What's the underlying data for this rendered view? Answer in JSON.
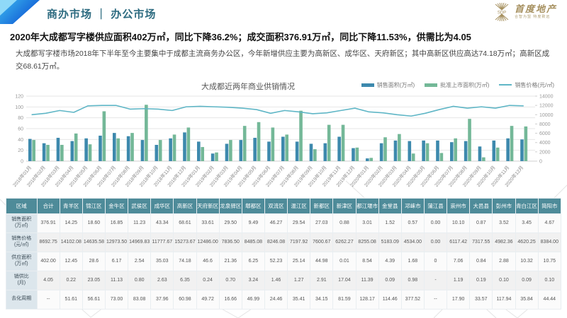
{
  "header": {
    "title": "商办市场 ｜ 办公市场",
    "logo": {
      "abbr": "SDP",
      "name": "首度地产",
      "tagline": "合智为盟  特度致远"
    }
  },
  "headline": {
    "text": "2020年大成都写字楼供应面积402万㎡，同比下降36.2%；成交面积376.91万㎡，同比下降11.53%，供需比为4.05"
  },
  "paragraph": {
    "text": "大成都写字楼市场2018年下半年至今主要集中于成都主流商务办公区，今年新增供应主要为高新区、成华区、天府新区；其中高新区供应高达74.18万㎡；高新区成交68.61万㎡。"
  },
  "chart_data": {
    "type": "bar",
    "title": "大成都近两年商业供销情况",
    "grid": true,
    "legend_position": "top-right",
    "left_axis": {
      "min": 0,
      "max": 120,
      "step": 20
    },
    "right_axis": {
      "min": 0,
      "max": 14000,
      "step": 2000
    },
    "categories": [
      "2018年01月",
      "2018年02月",
      "2018年03月",
      "2018年04月",
      "2018年05月",
      "2018年06月",
      "2018年07月",
      "2018年08月",
      "2018年09月",
      "2018年10月",
      "2018年11月",
      "2018年12月",
      "2019年01月",
      "2019年02月",
      "2019年03月",
      "2019年04月",
      "2019年05月",
      "2019年06月",
      "2019年07月",
      "2019年08月",
      "2019年09月",
      "2019年10月",
      "2019年11月",
      "2019年12月",
      "2020年01月",
      "2020年02月",
      "2020年03月",
      "2020年04月",
      "2020年05月",
      "2020年06月",
      "2020年07月",
      "2020年08月",
      "2020年09月",
      "2020年10月",
      "2020年11月",
      "2020年12月"
    ],
    "series": [
      {
        "name": "销售面积(万㎡)",
        "kind": "bar",
        "axis": "left",
        "color": "#3d89ad",
        "values": [
          41,
          33,
          43,
          37,
          42,
          47,
          52,
          46,
          39,
          30,
          42,
          53,
          36,
          14,
          32,
          39,
          43,
          36,
          45,
          36,
          32,
          33,
          45,
          24,
          5,
          33,
          38,
          37,
          38,
          38,
          35,
          37,
          27,
          38,
          42,
          40
        ]
      },
      {
        "name": "批准上市面积(万㎡)",
        "kind": "bar",
        "axis": "left",
        "color": "#74b898",
        "values": [
          39,
          30,
          30,
          51,
          31,
          92,
          42,
          52,
          104,
          39,
          49,
          62,
          26,
          16,
          39,
          65,
          72,
          62,
          49,
          93,
          22,
          67,
          67,
          25,
          6,
          44,
          50,
          14,
          33,
          15,
          42,
          78,
          7,
          25,
          65,
          64
        ]
      },
      {
        "name": "销售价格(元/㎡)",
        "kind": "line",
        "axis": "right",
        "color": "#5fb6c6",
        "values": [
          10000,
          10300,
          10900,
          10500,
          11900,
          12000,
          12000,
          11200,
          11300,
          11200,
          10900,
          11700,
          11800,
          11700,
          11600,
          11400,
          11100,
          10300,
          10900,
          10600,
          10200,
          10400,
          10900,
          11400,
          10600,
          10400,
          10000,
          9700,
          10300,
          11100,
          11800,
          11400,
          11700,
          11400,
          12000,
          11900
        ]
      }
    ]
  },
  "table": {
    "columns": [
      "区域",
      "合计",
      "青羊区",
      "锦江区",
      "金牛区",
      "武侯区",
      "成华区",
      "高新区",
      "天府新区",
      "龙泉驿区",
      "郫都区",
      "双流区",
      "温江区",
      "新都区",
      "新津区",
      "都江堰市",
      "金堂县",
      "邛崃市",
      "蒲江县",
      "崇州市",
      "大邑县",
      "彭州市",
      "青白江区",
      "简阳市"
    ],
    "rows": [
      {
        "label": "销售面积",
        "unit": "(万㎡)",
        "values": [
          "376.91",
          "14.25",
          "18.60",
          "16.85",
          "11.23",
          "43.34",
          "68.61",
          "33.61",
          "29.50",
          "9.49",
          "46.27",
          "29.54",
          "27.03",
          "0.88",
          "3.01",
          "1.52",
          "0.57",
          "0.00",
          "10.10",
          "0.87",
          "3.52",
          "3.45",
          "4.67"
        ]
      },
      {
        "label": "销售价格",
        "unit": "(元/㎡)",
        "values": [
          "8692.75",
          "14102.08",
          "14635.58",
          "12973.50",
          "14969.83",
          "11777.67",
          "15273.67",
          "12486.00",
          "7836.50",
          "8485.08",
          "8246.08",
          "7197.92",
          "7600.67",
          "6262.27",
          "8255.08",
          "5183.09",
          "4534.00",
          "0.00",
          "6117.42",
          "7317.55",
          "4982.36",
          "4620.25",
          "8384.00"
        ]
      },
      {
        "label": "供应面积",
        "unit": "(万㎡)",
        "values": [
          "402.00",
          "12.45",
          "28.6",
          "6.17",
          "2.54",
          "35.03",
          "74.18",
          "46.6",
          "21.36",
          "6.25",
          "52.23",
          "25.14",
          "44.98",
          "0.01",
          "8.54",
          "4.39",
          "1.68",
          "0",
          "7.06",
          "0.84",
          "2.88",
          "10.32",
          "10.75"
        ]
      },
      {
        "label": "销供比",
        "unit": "(月)",
        "values": [
          "4.05",
          "0.22",
          "23.05",
          "11.13",
          "0.80",
          "2.63",
          "6.35",
          "0.24",
          "0.70",
          "3.24",
          "1.46",
          "1.27",
          "2.91",
          "17.04",
          "11.39",
          "0.09",
          "0.98",
          "-",
          "1.19",
          "0.19",
          "0.10",
          "0.09",
          "0.10"
        ]
      },
      {
        "label": "去化周期",
        "unit": "",
        "values": [
          "--",
          "51.61",
          "56.61",
          "73.00",
          "83.08",
          "37.96",
          "60.98",
          "49.72",
          "16.66",
          "46.99",
          "24.46",
          "35.41",
          "34.15",
          "81.59",
          "128.17",
          "114.46",
          "377.52",
          "--",
          "17.90",
          "33.57",
          "117.94",
          "35.84",
          "44.44"
        ]
      }
    ]
  },
  "colors": {
    "accent_blue": "#1565d8",
    "accent_cyan": "#3cb9ef",
    "header_text": "#2d6b80",
    "logo_gold": "#a6905f",
    "table_header_bg": "#4e8b99",
    "grid_line": "#e6e6e6"
  }
}
